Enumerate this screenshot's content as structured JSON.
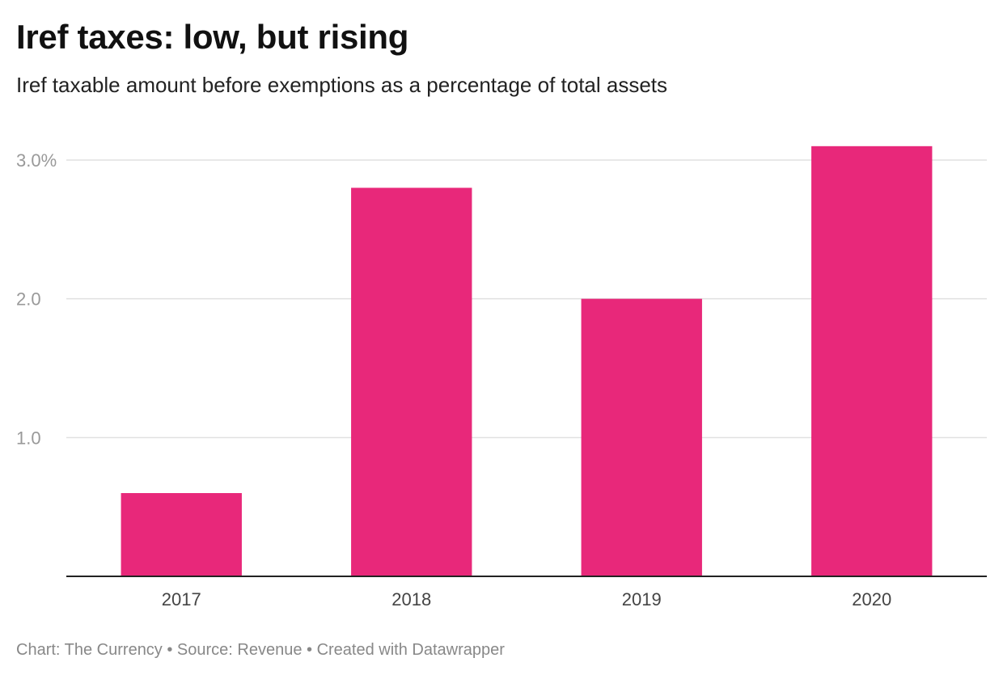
{
  "chart_data": {
    "type": "bar",
    "title": "Iref taxes: low, but rising",
    "subtitle": "Iref taxable amount before exemptions as a percentage of total assets",
    "categories": [
      "2017",
      "2018",
      "2019",
      "2020"
    ],
    "values": [
      0.6,
      2.8,
      2.0,
      3.1
    ],
    "ylim": [
      0,
      3.0
    ],
    "yticks": [
      {
        "value": 1.0,
        "label": "1.0"
      },
      {
        "value": 2.0,
        "label": "2.0"
      },
      {
        "value": 3.0,
        "label": "3.0%"
      }
    ],
    "grid": true,
    "bar_color": "#E8287A",
    "xlabel": "",
    "ylabel": ""
  },
  "footer": {
    "text": "Chart: The Currency • Source: Revenue • Created with Datawrapper"
  }
}
